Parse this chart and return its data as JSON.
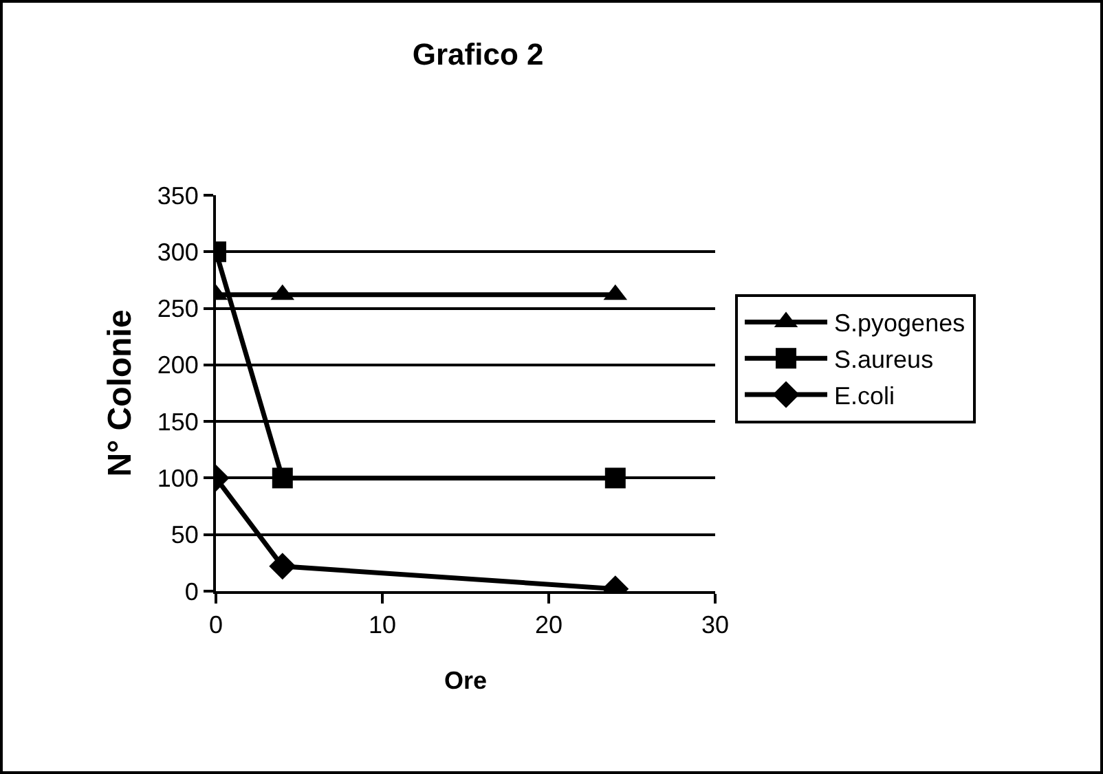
{
  "chart_data": {
    "type": "line",
    "title": "Grafico 2",
    "xlabel": "Ore",
    "ylabel": "N° Colonie",
    "x": [
      0,
      4,
      24
    ],
    "series": [
      {
        "name": "S.pyogenes",
        "color": "#000000",
        "marker": "triangle",
        "values": [
          262,
          262,
          262
        ]
      },
      {
        "name": "S.aureus",
        "color": "#000000",
        "marker": "square",
        "values": [
          300,
          100,
          100
        ]
      },
      {
        "name": "E.coli",
        "color": "#000000",
        "marker": "diamond",
        "values": [
          100,
          22,
          2
        ]
      }
    ],
    "xlim": [
      0,
      30
    ],
    "xticks": [
      0,
      10,
      20,
      30
    ],
    "ylim": [
      0,
      350
    ],
    "yticks": [
      0,
      50,
      100,
      150,
      200,
      250,
      300,
      350
    ],
    "grid": "y",
    "legend": "right",
    "line_style": "solid"
  }
}
